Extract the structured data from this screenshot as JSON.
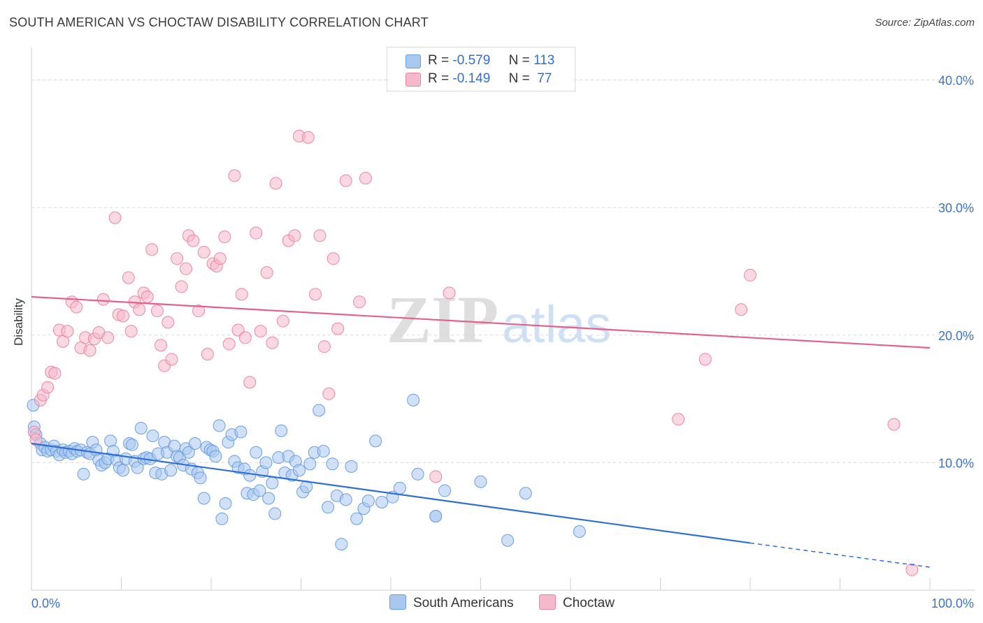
{
  "title": "SOUTH AMERICAN VS CHOCTAW DISABILITY CORRELATION CHART",
  "source": "Source: ZipAtlas.com",
  "watermark": {
    "zip": "ZIP",
    "atlas": "atlas"
  },
  "legend": {
    "rows": [
      {
        "r_label": "R =",
        "r_value": "-0.579",
        "n_label": "N =",
        "n_value": "113"
      },
      {
        "r_label": "R =",
        "r_value": "-0.149",
        "n_label": "N =",
        "n_value": "77"
      }
    ]
  },
  "bottom_legend": {
    "series1": "South Americans",
    "series2": "Choctaw"
  },
  "colors": {
    "blue_fill": "#a9c8f0",
    "blue_stroke": "#6a9ee0",
    "blue_line": "#2f6fd0",
    "pink_fill": "#f6b8cb",
    "pink_stroke": "#eb86a6",
    "pink_line": "#e2628d",
    "tick_label": "#3b73c9",
    "grid": "#d8d8d8"
  },
  "chart_data": {
    "type": "scatter",
    "title": "SOUTH AMERICAN VS CHOCTAW DISABILITY CORRELATION CHART",
    "ylabel": "Disability",
    "xlabel": "",
    "xlim": [
      0,
      100
    ],
    "ylim": [
      0,
      40
    ],
    "x_ticks_labels": [
      "0.0%",
      "100.0%"
    ],
    "y_ticks": [
      10,
      20,
      30,
      40
    ],
    "y_tick_labels": [
      "10.0%",
      "20.0%",
      "30.0%",
      "40.0%"
    ],
    "grid": "horizontal dashed",
    "series": [
      {
        "name": "South Americans",
        "r": -0.579,
        "n": 113,
        "trend": {
          "x0": 0,
          "y0": 11.5,
          "x1": 80,
          "y1": 3.7,
          "dash_to_x": 100,
          "dash_to_y": 1.8
        },
        "points": [
          [
            0.2,
            14.5
          ],
          [
            0.3,
            12.8
          ],
          [
            0.5,
            12.2
          ],
          [
            1.0,
            11.5
          ],
          [
            1.2,
            11.0
          ],
          [
            1.5,
            11.2
          ],
          [
            1.8,
            10.9
          ],
          [
            2.2,
            11.0
          ],
          [
            2.5,
            11.3
          ],
          [
            2.8,
            10.9
          ],
          [
            3.1,
            10.6
          ],
          [
            3.5,
            11.0
          ],
          [
            3.8,
            10.8
          ],
          [
            4.2,
            10.9
          ],
          [
            4.5,
            10.7
          ],
          [
            4.8,
            11.1
          ],
          [
            5.1,
            10.9
          ],
          [
            5.5,
            11.0
          ],
          [
            5.8,
            9.1
          ],
          [
            6.2,
            10.8
          ],
          [
            6.5,
            10.7
          ],
          [
            6.8,
            11.6
          ],
          [
            7.2,
            11.0
          ],
          [
            7.5,
            10.2
          ],
          [
            7.8,
            9.8
          ],
          [
            8.2,
            10.0
          ],
          [
            8.5,
            10.3
          ],
          [
            8.8,
            11.7
          ],
          [
            9.1,
            10.9
          ],
          [
            9.5,
            10.2
          ],
          [
            9.8,
            9.6
          ],
          [
            10.2,
            9.4
          ],
          [
            10.5,
            10.3
          ],
          [
            10.9,
            11.5
          ],
          [
            11.2,
            11.4
          ],
          [
            11.5,
            10.1
          ],
          [
            11.8,
            9.6
          ],
          [
            12.2,
            12.7
          ],
          [
            12.5,
            10.3
          ],
          [
            12.8,
            10.4
          ],
          [
            13.2,
            10.3
          ],
          [
            13.5,
            12.1
          ],
          [
            13.8,
            9.2
          ],
          [
            14.1,
            10.7
          ],
          [
            14.5,
            9.1
          ],
          [
            14.8,
            11.6
          ],
          [
            15.1,
            10.8
          ],
          [
            15.5,
            9.4
          ],
          [
            15.9,
            11.3
          ],
          [
            16.2,
            10.5
          ],
          [
            16.5,
            10.4
          ],
          [
            16.9,
            9.8
          ],
          [
            17.2,
            11.1
          ],
          [
            17.5,
            10.8
          ],
          [
            17.8,
            9.5
          ],
          [
            18.2,
            11.5
          ],
          [
            18.5,
            9.2
          ],
          [
            18.8,
            8.8
          ],
          [
            19.2,
            7.2
          ],
          [
            19.5,
            11.2
          ],
          [
            19.9,
            11.0
          ],
          [
            20.2,
            10.9
          ],
          [
            20.5,
            10.5
          ],
          [
            20.9,
            12.9
          ],
          [
            21.2,
            5.6
          ],
          [
            21.6,
            6.8
          ],
          [
            21.9,
            11.6
          ],
          [
            22.3,
            12.2
          ],
          [
            22.6,
            10.1
          ],
          [
            23.0,
            9.6
          ],
          [
            23.3,
            12.4
          ],
          [
            23.7,
            9.5
          ],
          [
            24.0,
            7.6
          ],
          [
            24.3,
            9.0
          ],
          [
            24.7,
            7.5
          ],
          [
            25.0,
            10.8
          ],
          [
            25.4,
            7.8
          ],
          [
            25.7,
            9.3
          ],
          [
            26.1,
            10.0
          ],
          [
            26.4,
            7.2
          ],
          [
            26.8,
            8.4
          ],
          [
            27.1,
            6.0
          ],
          [
            27.5,
            10.4
          ],
          [
            27.8,
            12.5
          ],
          [
            28.2,
            9.2
          ],
          [
            28.6,
            10.5
          ],
          [
            29.0,
            9.0
          ],
          [
            29.4,
            10.1
          ],
          [
            29.8,
            9.4
          ],
          [
            30.2,
            7.7
          ],
          [
            30.6,
            8.1
          ],
          [
            31.0,
            9.9
          ],
          [
            31.5,
            10.8
          ],
          [
            32.0,
            14.1
          ],
          [
            32.5,
            10.9
          ],
          [
            33.0,
            6.5
          ],
          [
            33.5,
            9.9
          ],
          [
            34.0,
            7.4
          ],
          [
            34.5,
            3.6
          ],
          [
            35.0,
            7.1
          ],
          [
            35.6,
            9.7
          ],
          [
            36.2,
            5.6
          ],
          [
            37.0,
            6.4
          ],
          [
            37.5,
            7.0
          ],
          [
            38.3,
            11.7
          ],
          [
            39.0,
            6.9
          ],
          [
            40.2,
            7.3
          ],
          [
            41.0,
            8.0
          ],
          [
            42.5,
            14.9
          ],
          [
            43.0,
            9.1
          ],
          [
            45.0,
            5.8
          ],
          [
            46.0,
            7.8
          ],
          [
            50.0,
            8.5
          ],
          [
            53.0,
            3.9
          ],
          [
            55.0,
            7.6
          ],
          [
            61.0,
            4.6
          ],
          [
            45.0,
            5.8
          ]
        ]
      },
      {
        "name": "Choctaw",
        "r": -0.149,
        "n": 77,
        "trend": {
          "x0": 0,
          "y0": 23.0,
          "x1": 100,
          "y1": 19.0
        },
        "points": [
          [
            0.3,
            12.4
          ],
          [
            0.5,
            11.8
          ],
          [
            1.0,
            14.9
          ],
          [
            1.3,
            15.3
          ],
          [
            1.8,
            15.9
          ],
          [
            2.2,
            17.1
          ],
          [
            2.6,
            17.0
          ],
          [
            3.1,
            20.4
          ],
          [
            3.5,
            19.5
          ],
          [
            4.0,
            20.3
          ],
          [
            4.5,
            22.6
          ],
          [
            5.0,
            22.2
          ],
          [
            5.5,
            19.0
          ],
          [
            6.0,
            19.8
          ],
          [
            6.5,
            18.8
          ],
          [
            7.0,
            19.7
          ],
          [
            7.5,
            20.2
          ],
          [
            8.0,
            22.8
          ],
          [
            8.5,
            19.8
          ],
          [
            9.3,
            29.2
          ],
          [
            9.7,
            21.6
          ],
          [
            10.2,
            21.5
          ],
          [
            10.8,
            24.5
          ],
          [
            11.1,
            20.3
          ],
          [
            11.5,
            22.6
          ],
          [
            12.0,
            22.0
          ],
          [
            12.5,
            23.3
          ],
          [
            12.9,
            23.0
          ],
          [
            13.4,
            26.7
          ],
          [
            14.0,
            21.9
          ],
          [
            14.4,
            19.2
          ],
          [
            14.8,
            17.6
          ],
          [
            15.2,
            21.0
          ],
          [
            15.6,
            18.1
          ],
          [
            16.2,
            26.0
          ],
          [
            16.7,
            23.8
          ],
          [
            17.2,
            25.2
          ],
          [
            17.5,
            27.8
          ],
          [
            18.0,
            27.4
          ],
          [
            18.6,
            21.9
          ],
          [
            19.2,
            26.5
          ],
          [
            19.6,
            18.5
          ],
          [
            20.2,
            25.6
          ],
          [
            20.6,
            25.4
          ],
          [
            21.0,
            26.0
          ],
          [
            21.5,
            27.7
          ],
          [
            22.0,
            19.3
          ],
          [
            22.6,
            32.5
          ],
          [
            23.0,
            20.4
          ],
          [
            23.4,
            23.2
          ],
          [
            23.8,
            19.8
          ],
          [
            24.3,
            16.3
          ],
          [
            25.0,
            28.0
          ],
          [
            25.5,
            20.3
          ],
          [
            26.2,
            24.9
          ],
          [
            26.8,
            19.4
          ],
          [
            27.2,
            31.9
          ],
          [
            28.0,
            21.1
          ],
          [
            28.6,
            27.4
          ],
          [
            29.3,
            27.8
          ],
          [
            29.8,
            35.6
          ],
          [
            30.8,
            35.5
          ],
          [
            31.6,
            23.2
          ],
          [
            32.1,
            27.8
          ],
          [
            32.6,
            19.1
          ],
          [
            33.1,
            15.4
          ],
          [
            33.6,
            26.0
          ],
          [
            34.1,
            20.5
          ],
          [
            35.0,
            32.1
          ],
          [
            36.5,
            22.6
          ],
          [
            37.2,
            32.3
          ],
          [
            45.0,
            8.9
          ],
          [
            46.5,
            23.3
          ],
          [
            72.0,
            13.4
          ],
          [
            75.0,
            18.1
          ],
          [
            79.0,
            22.0
          ],
          [
            80.0,
            24.7
          ],
          [
            96.0,
            13.0
          ],
          [
            98.0,
            1.6
          ]
        ]
      }
    ]
  }
}
